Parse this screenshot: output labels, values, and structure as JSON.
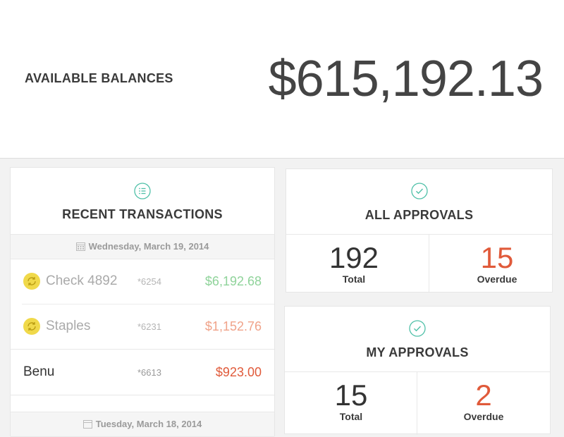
{
  "balance": {
    "label": "AVAILABLE BALANCES",
    "amount": "$615,192.13"
  },
  "recent": {
    "title": "RECENT TRANSACTIONS",
    "icon": "list-icon",
    "date_1": "Wednesday, March 19, 2014",
    "transactions": [
      {
        "name": "Check 4892",
        "account": "*6254",
        "amount": "$6,192.68",
        "pending": true,
        "amount_color": "#8fd39a"
      },
      {
        "name": "Staples",
        "account": "*6231",
        "amount": "$1,152.76",
        "pending": true,
        "amount_color": "#f0a38a"
      },
      {
        "name": "Benu",
        "account": "*6613",
        "amount": "$923.00",
        "pending": false,
        "amount_color": "#e05a3a"
      }
    ],
    "date_2": "Tuesday, March 18, 2014"
  },
  "all_approvals": {
    "title": "ALL APPROVALS",
    "icon": "check-circle-icon",
    "total": "192",
    "total_label": "Total",
    "overdue": "15",
    "overdue_label": "Overdue"
  },
  "my_approvals": {
    "title": "MY APPROVALS",
    "icon": "check-circle-icon",
    "total": "15",
    "total_label": "Total",
    "overdue": "2",
    "overdue_label": "Overdue"
  },
  "colors": {
    "accent_teal": "#4fc0a8",
    "overdue_red": "#e05a3a",
    "pending_coin": "#f0d94a"
  }
}
